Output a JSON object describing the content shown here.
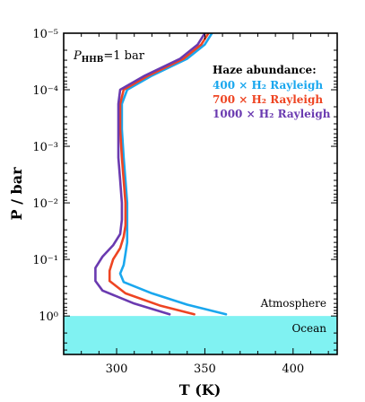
{
  "chart_data": {
    "type": "line",
    "xlabel": "T (K)",
    "ylabel": "P / bar",
    "xlim": [
      270,
      425
    ],
    "ylim_log10": [
      -5,
      0.68
    ],
    "y_scale": "log",
    "x_ticks": [
      300,
      350,
      400
    ],
    "x_tick_labels": [
      "300",
      "350",
      "400"
    ],
    "y_ticks_log10": [
      -5,
      -4,
      -3,
      -2,
      -1,
      0
    ],
    "y_tick_labels": [
      "10⁻⁵",
      "10⁻⁴",
      "10⁻³",
      "10⁻²",
      "10⁻¹",
      "10⁰"
    ],
    "legend": {
      "title": "Haze abundance:",
      "placement": "top-right",
      "entries": [
        "400 × H₂ Rayleigh",
        "700 × H₂ Rayleigh",
        "1000 × H₂ Rayleigh"
      ]
    },
    "annotation": {
      "base": "P",
      "subscript": "HHB",
      "value": "=1 bar"
    },
    "regions": {
      "atmosphere_label": "Atmosphere",
      "ocean_label": "Ocean",
      "ocean_boundary_pressure_bar": 1,
      "ocean_color": "#80f2f2"
    },
    "series": [
      {
        "name": "400 × H₂ Rayleigh",
        "color": "#1aa7ee",
        "points": [
          [
            354,
            -5.0
          ],
          [
            350,
            -4.8
          ],
          [
            340,
            -4.55
          ],
          [
            320,
            -4.25
          ],
          [
            306,
            -4.0
          ],
          [
            303,
            -3.75
          ],
          [
            303,
            -3.3
          ],
          [
            304,
            -2.8
          ],
          [
            305,
            -2.4
          ],
          [
            306,
            -2.0
          ],
          [
            306,
            -1.6
          ],
          [
            306,
            -1.3
          ],
          [
            305,
            -1.1
          ],
          [
            304,
            -0.9
          ],
          [
            302,
            -0.75
          ],
          [
            304,
            -0.6
          ],
          [
            320,
            -0.4
          ],
          [
            340,
            -0.2
          ],
          [
            362,
            -0.03
          ]
        ]
      },
      {
        "name": "700 × H₂ Rayleigh",
        "color": "#ee4422",
        "points": [
          [
            352,
            -5.0
          ],
          [
            348,
            -4.8
          ],
          [
            338,
            -4.55
          ],
          [
            318,
            -4.25
          ],
          [
            304,
            -4.0
          ],
          [
            302,
            -3.75
          ],
          [
            302,
            -3.3
          ],
          [
            303,
            -2.8
          ],
          [
            304,
            -2.4
          ],
          [
            305,
            -2.0
          ],
          [
            305,
            -1.6
          ],
          [
            304,
            -1.4
          ],
          [
            302,
            -1.2
          ],
          [
            298,
            -1.0
          ],
          [
            296,
            -0.8
          ],
          [
            296,
            -0.62
          ],
          [
            305,
            -0.4
          ],
          [
            325,
            -0.18
          ],
          [
            344,
            -0.03
          ]
        ]
      },
      {
        "name": "1000 × H₂ Rayleigh",
        "color": "#6a3ab0",
        "points": [
          [
            350,
            -5.0
          ],
          [
            346,
            -4.8
          ],
          [
            336,
            -4.55
          ],
          [
            316,
            -4.25
          ],
          [
            302,
            -4.0
          ],
          [
            301,
            -3.75
          ],
          [
            301,
            -3.3
          ],
          [
            301,
            -2.8
          ],
          [
            302,
            -2.4
          ],
          [
            303,
            -2.0
          ],
          [
            303,
            -1.7
          ],
          [
            302,
            -1.45
          ],
          [
            298,
            -1.25
          ],
          [
            292,
            -1.05
          ],
          [
            288,
            -0.85
          ],
          [
            288,
            -0.62
          ],
          [
            292,
            -0.45
          ],
          [
            310,
            -0.22
          ],
          [
            330,
            -0.03
          ]
        ]
      }
    ]
  }
}
